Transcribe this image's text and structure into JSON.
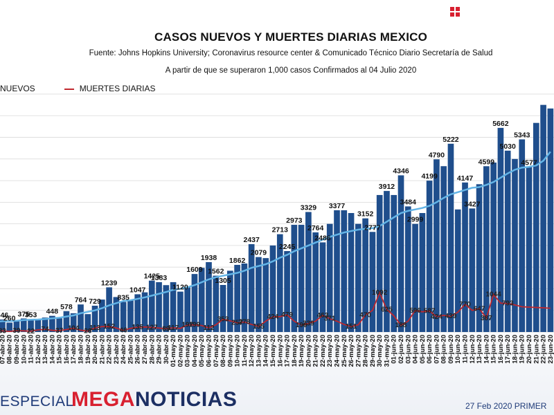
{
  "header": {
    "title": "CASOS NUEVOS Y MUERTES DIARIAS MEXICO",
    "source": "Fuente: Johns Hopkins University; Coronavirus resource center & Comunicado Técnico Diario Secretaría de Salud",
    "note": "A partir de que se superaron 1,000 casos Confirmados al 04 Julio 2020"
  },
  "legend": {
    "cases_label": "NUEVOS",
    "deaths_label": "MUERTES DIARIAS"
  },
  "footer": {
    "especial": "ESPECIAL",
    "logo_mega": "MEGA",
    "logo_noticias": "NOTICIAS",
    "date": "27 Feb 2020 PRIMER"
  },
  "colors": {
    "bars": "#1f4e8c",
    "moving_avg": "#63b4e6",
    "deaths": "#c0272d",
    "grid": "#d9d9d9",
    "brand_red": "#d82030",
    "brand_blue": "#1c2f63"
  },
  "chart_data": {
    "type": "bar",
    "ylim": [
      0,
      6600
    ],
    "grid": true,
    "legend_position": "top-left",
    "categories": [
      "06-abr-20",
      "07-abr-20",
      "08-abr-20",
      "09-abr-20",
      "10-abr-20",
      "11-abr-20",
      "12-abr-20",
      "13-abr-20",
      "14-abr-20",
      "15-abr-20",
      "16-abr-20",
      "17-abr-20",
      "18-abr-20",
      "19-abr-20",
      "20-abr-20",
      "21-abr-20",
      "22-abr-20",
      "23-abr-20",
      "24-abr-20",
      "25-abr-20",
      "26-abr-20",
      "27-abr-20",
      "28-abr-20",
      "29-abr-20",
      "30-abr-20",
      "01-may-20",
      "02-may-20",
      "03-may-20",
      "04-may-20",
      "05-may-20",
      "06-may-20",
      "07-may-20",
      "08-may-20",
      "09-may-20",
      "10-may-20",
      "11-may-20",
      "12-may-20",
      "13-may-20",
      "14-may-20",
      "15-may-20",
      "16-may-20",
      "17-may-20",
      "18-may-20",
      "19-may-20",
      "20-may-20",
      "21-may-20",
      "22-may-20",
      "23-may-20",
      "24-may-20",
      "25-may-20",
      "26-may-20",
      "27-may-20",
      "28-may-20",
      "29-may-20",
      "30-may-20",
      "31-may-20",
      "01-jun-20",
      "02-jun-20",
      "03-jun-20",
      "04-jun-20",
      "05-jun-20",
      "06-jun-20",
      "07-jun-20",
      "08-jun-20",
      "09-jun-20",
      "10-jun-20",
      "11-jun-20",
      "12-jun-20",
      "13-jun-20",
      "14-jun-20",
      "15-jun-20",
      "16-jun-20",
      "17-jun-20",
      "18-jun-20",
      "19-jun-20",
      "20-jun-20",
      "21-jun-20",
      "22-jun-20",
      "23-jun-20"
    ],
    "tick_labels": [
      "07-abr-20",
      "08-abr-20",
      "09-abr-20",
      "10-abr-20",
      "11-abr-20",
      "12-abr-20",
      "13-abr-20",
      "14-abr-20",
      "15-abr-20",
      "16-abr-20",
      "17-abr-20",
      "18-abr-20",
      "19-abr-20",
      "20-abr-20",
      "21-abr-20",
      "22-abr-20",
      "23-abr-20",
      "24-abr-20",
      "25-abr-20",
      "26-abr-20",
      "27-abr-20",
      "28-abr-20",
      "29-abr-20",
      "30-abr-20",
      "01-may-20",
      "02-may-20",
      "03-may-20",
      "04-may-20",
      "05-may-20",
      "06-may-20",
      "07-may-20",
      "08-may-20",
      "09-may-20",
      "10-may-20",
      "11-may-20",
      "12-may-20",
      "13-may-20",
      "14-may-20",
      "15-may-20",
      "16-may-20",
      "17-may-20",
      "18-may-20",
      "19-may-20",
      "20-may-20",
      "21-may-20",
      "22-may-20",
      "23-may-20",
      "24-may-20",
      "25-may-20",
      "26-may-20",
      "27-may-20",
      "28-may-20",
      "29-may-20",
      "30-may-20",
      "31-may-20",
      "01-jun-20",
      "02-jun-20",
      "03-jun-20",
      "04-jun-20",
      "05-jun-20",
      "06-jun-20",
      "07-jun-20",
      "08-jun-20",
      "09-jun-20",
      "10-jun-20",
      "11-jun-20",
      "12-jun-20",
      "13-jun-20",
      "14-jun-20",
      "15-jun-20",
      "16-jun-20",
      "17-jun-20",
      "18-jun-20",
      "19-jun-20",
      "20-jun-20",
      "21-jun-20",
      "22-jun-20",
      "23-jun-20"
    ],
    "series": [
      {
        "name": "NUEVOS",
        "type": "bar",
        "values": [
          296,
          346,
          260,
          296,
          375,
          353,
          330,
          400,
          448,
          380,
          578,
          520,
          764,
          496,
          729,
          900,
          1239,
          970,
          835,
          880,
          1047,
          1100,
          1425,
          1383,
          1300,
          1383,
          1120,
          1250,
          1609,
          1780,
          1938,
          1562,
          1305,
          1700,
          1862,
          1900,
          2437,
          2079,
          2050,
          2400,
          2713,
          2245,
          2973,
          2973,
          3329,
          2764,
          2486,
          3000,
          3377,
          3377,
          3300,
          3000,
          3152,
          2777,
          3800,
          3912,
          3800,
          4346,
          3484,
          2999,
          3300,
          4199,
          4790,
          4600,
          5222,
          3400,
          4147,
          3427,
          4100,
          4599,
          4700,
          5662,
          5030,
          4800,
          5343,
          4577,
          5800,
          6300,
          6200
        ]
      },
      {
        "name": "MUERTES DIARIAS",
        "type": "line",
        "values": [
          20,
          33,
          17,
          39,
          32,
          22,
          60,
          74,
          47,
          37,
          70,
          104,
          50,
          26,
          113,
          150,
          152,
          110,
          46,
          100,
          135,
          140,
          127,
          110,
          89,
          117,
          100,
          197,
          199,
          180,
          112,
          200,
          353,
          310,
          257,
          278,
          210,
          155,
          300,
          424,
          424,
          479,
          300,
          190,
          239,
          300,
          463,
          371,
          300,
          210,
          151,
          200,
          470,
          600,
          1092,
          625,
          450,
          188,
          300,
          596,
          560,
          587,
          424,
          460,
          439,
          550,
          770,
          600,
          647,
          387,
          1044,
          800,
          793,
          750,
          700,
          690,
          680,
          670,
          660
        ]
      },
      {
        "name": "",
        "type": "moving-average",
        "values": [
          280,
          300,
          305,
          310,
          330,
          340,
          345,
          360,
          380,
          395,
          430,
          460,
          520,
          560,
          600,
          660,
          740,
          800,
          860,
          880,
          920,
          960,
          1010,
          1060,
          1110,
          1170,
          1200,
          1240,
          1300,
          1380,
          1460,
          1520,
          1560,
          1600,
          1640,
          1700,
          1780,
          1830,
          1880,
          1960,
          2060,
          2140,
          2240,
          2320,
          2400,
          2480,
          2560,
          2640,
          2700,
          2760,
          2800,
          2840,
          2860,
          2880,
          2940,
          3060,
          3180,
          3300,
          3360,
          3400,
          3440,
          3500,
          3600,
          3720,
          3820,
          3880,
          3940,
          4000,
          4020,
          4080,
          4160,
          4280,
          4400,
          4500,
          4560,
          4580,
          4620,
          4750,
          5000
        ]
      }
    ],
    "bar_labels": [
      {
        "i": 1,
        "text": "346"
      },
      {
        "i": 2,
        "text": "260"
      },
      {
        "i": 4,
        "text": "375"
      },
      {
        "i": 5,
        "text": "353"
      },
      {
        "i": 8,
        "text": "448"
      },
      {
        "i": 10,
        "text": "578"
      },
      {
        "i": 12,
        "text": "764"
      },
      {
        "i": 14,
        "text": "729"
      },
      {
        "i": 16,
        "text": "1239"
      },
      {
        "i": 18,
        "text": "835"
      },
      {
        "i": 20,
        "text": "1047"
      },
      {
        "i": 22,
        "text": "1425"
      },
      {
        "i": 23,
        "text": "1383"
      },
      {
        "i": 26,
        "text": "1120"
      },
      {
        "i": 28,
        "text": "1609"
      },
      {
        "i": 30,
        "text": "1938"
      },
      {
        "i": 31,
        "text": "1562"
      },
      {
        "i": 32,
        "text": "1305"
      },
      {
        "i": 34,
        "text": "1862"
      },
      {
        "i": 36,
        "text": "2437"
      },
      {
        "i": 37,
        "text": "2079"
      },
      {
        "i": 40,
        "text": "2713"
      },
      {
        "i": 41,
        "text": "2245"
      },
      {
        "i": 42,
        "text": "2973"
      },
      {
        "i": 44,
        "text": "3329"
      },
      {
        "i": 45,
        "text": "2764"
      },
      {
        "i": 46,
        "text": "2486"
      },
      {
        "i": 48,
        "text": "3377"
      },
      {
        "i": 52,
        "text": "3152"
      },
      {
        "i": 53,
        "text": "2777"
      },
      {
        "i": 55,
        "text": "3912"
      },
      {
        "i": 57,
        "text": "4346"
      },
      {
        "i": 58,
        "text": "3484"
      },
      {
        "i": 59,
        "text": "2999"
      },
      {
        "i": 61,
        "text": "4199"
      },
      {
        "i": 62,
        "text": "4790"
      },
      {
        "i": 64,
        "text": "5222"
      },
      {
        "i": 66,
        "text": "4147"
      },
      {
        "i": 67,
        "text": "3427"
      },
      {
        "i": 69,
        "text": "4599"
      },
      {
        "i": 71,
        "text": "5662"
      },
      {
        "i": 72,
        "text": "5030"
      },
      {
        "i": 74,
        "text": "5343"
      },
      {
        "i": 75,
        "text": "4577"
      }
    ],
    "death_labels": [
      {
        "i": 0,
        "text": "20"
      },
      {
        "i": 1,
        "text": "33"
      },
      {
        "i": 3,
        "text": "39"
      },
      {
        "i": 5,
        "text": "22"
      },
      {
        "i": 7,
        "text": "74"
      },
      {
        "i": 9,
        "text": "37"
      },
      {
        "i": 11,
        "text": "104"
      },
      {
        "i": 13,
        "text": "26"
      },
      {
        "i": 14,
        "text": "113"
      },
      {
        "i": 16,
        "text": "152"
      },
      {
        "i": 18,
        "text": "46"
      },
      {
        "i": 20,
        "text": "135"
      },
      {
        "i": 22,
        "text": "127"
      },
      {
        "i": 24,
        "text": "89"
      },
      {
        "i": 25,
        "text": "117"
      },
      {
        "i": 27,
        "text": "197"
      },
      {
        "i": 28,
        "text": "199"
      },
      {
        "i": 30,
        "text": "112"
      },
      {
        "i": 32,
        "text": "353"
      },
      {
        "i": 34,
        "text": "257"
      },
      {
        "i": 35,
        "text": "278"
      },
      {
        "i": 37,
        "text": "155"
      },
      {
        "i": 39,
        "text": "424"
      },
      {
        "i": 41,
        "text": "479"
      },
      {
        "i": 43,
        "text": "190"
      },
      {
        "i": 44,
        "text": "239"
      },
      {
        "i": 46,
        "text": "463"
      },
      {
        "i": 47,
        "text": "371"
      },
      {
        "i": 50,
        "text": "151"
      },
      {
        "i": 52,
        "text": "470"
      },
      {
        "i": 54,
        "text": "1092"
      },
      {
        "i": 55,
        "text": "625"
      },
      {
        "i": 57,
        "text": "188"
      },
      {
        "i": 59,
        "text": "596"
      },
      {
        "i": 61,
        "text": "587"
      },
      {
        "i": 62,
        "text": "424"
      },
      {
        "i": 64,
        "text": "439"
      },
      {
        "i": 66,
        "text": "770"
      },
      {
        "i": 68,
        "text": "647"
      },
      {
        "i": 69,
        "text": "387"
      },
      {
        "i": 70,
        "text": "1044"
      },
      {
        "i": 72,
        "text": "793"
      }
    ]
  }
}
